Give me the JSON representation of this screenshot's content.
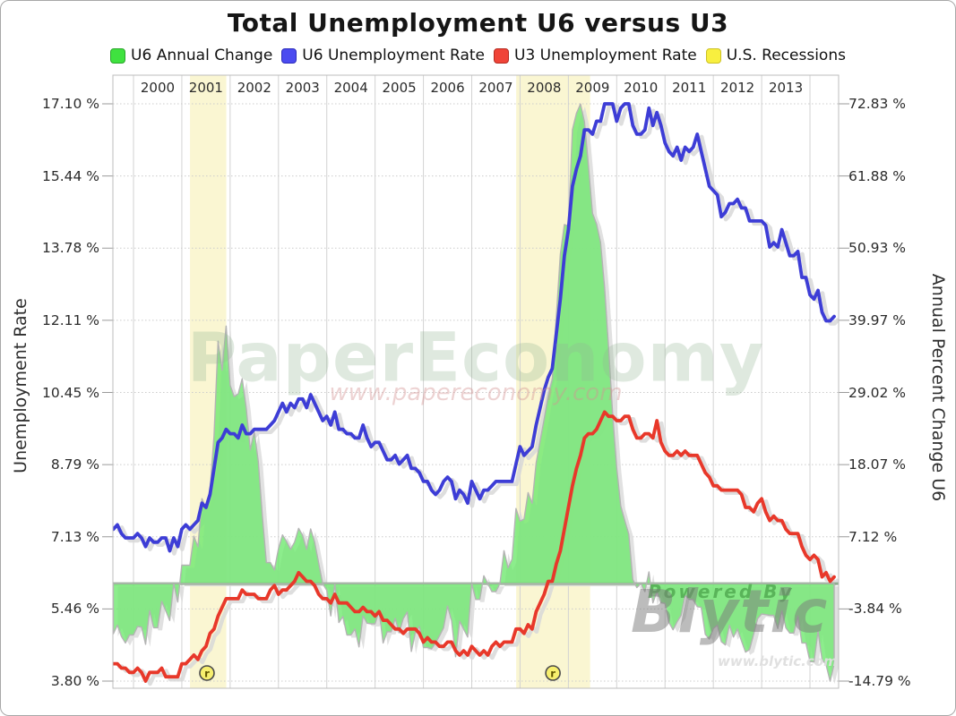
{
  "title": "Total Unemployment U6 versus U3",
  "legend": {
    "items": [
      {
        "label": "U6 Annual Change",
        "color": "#3fe23f",
        "border": "#2aa52a"
      },
      {
        "label": "U6 Unemployment Rate",
        "color": "#4b4bf0",
        "border": "#2d2dbb"
      },
      {
        "label": "U3 Unemployment Rate",
        "color": "#f04438",
        "border": "#b52a20"
      },
      {
        "label": "U.S. Recessions",
        "color": "#f8ef3f",
        "border": "#cbc025"
      }
    ]
  },
  "watermarks": {
    "site_name": "PaperEconomy",
    "site_url": "www.papereconomy.com",
    "powered_by": "Powered By",
    "brand": "Blytic",
    "brand_url": "www.blytic.com"
  },
  "chart_data": {
    "type": "line",
    "title": "Total Unemployment U6 versus U3",
    "x_axis": {
      "unit": "month",
      "start": "1999-08",
      "end": "2014-07",
      "year_labels": [
        "2000",
        "2001",
        "2002",
        "2003",
        "2004",
        "2005",
        "2006",
        "2007",
        "2008",
        "2009",
        "2010",
        "2011",
        "2012",
        "2013"
      ]
    },
    "left_axis": {
      "title": "Unemployment Rate",
      "min": 3.8,
      "max": 17.1,
      "tick_labels": [
        "17.10 %",
        "15.44 %",
        "13.78 %",
        "12.11 %",
        "10.45 %",
        "8.79 %",
        "7.13 %",
        "5.46 %",
        "3.80 %"
      ]
    },
    "right_axis": {
      "title": "Annual Percent Change U6",
      "min": -14.79,
      "max": 72.83,
      "tick_labels": [
        "72.83 %",
        "61.88 %",
        "50.93 %",
        "39.97 %",
        "29.02 %",
        "18.07 %",
        "7.12 %",
        "-3.84 %",
        "-14.79 %"
      ]
    },
    "recessions": [
      {
        "start": 2001.17,
        "end": 2001.92
      },
      {
        "start": 2007.92,
        "end": 2009.45
      }
    ],
    "recession_markers": [
      2001.52,
      2008.68
    ],
    "series": [
      {
        "name": "U6 Annual Change",
        "style": "area",
        "axis": "right",
        "fill": "rgba(108,232,108,0.78)",
        "stroke": "#b3b3b3",
        "values": [
          -7.6,
          -6.3,
          -8.0,
          -9.0,
          -7.8,
          -7.8,
          -6.5,
          -6.6,
          -9.2,
          -4.1,
          -6.7,
          -6.7,
          -2.7,
          -4.1,
          -5.6,
          0.0,
          -2.8,
          2.8,
          2.8,
          2.8,
          7.2,
          5.6,
          12.9,
          11.4,
          14.1,
          22.5,
          36.8,
          32.4,
          39.1,
          30.1,
          28.4,
          28.8,
          31.1,
          26.7,
          20.3,
          23.1,
          18.5,
          10.3,
          3.2,
          3.2,
          2.1,
          5.3,
          7.4,
          6.4,
          5.2,
          6.3,
          8.4,
          7.3,
          5.2,
          8.3,
          6.3,
          3.1,
          0.0,
          -1.0,
          -4.9,
          0.0,
          -5.9,
          -5.0,
          -7.8,
          -7.8,
          -6.9,
          -9.6,
          -4.9,
          -6.0,
          -6.1,
          -6.1,
          -4.1,
          -9.0,
          -7.3,
          -7.3,
          -5.3,
          -7.4,
          -5.3,
          -4.3,
          -10.3,
          -7.4,
          -6.5,
          -9.7,
          -9.7,
          -9.9,
          -9.0,
          -7.9,
          -6.7,
          -3.4,
          -5.6,
          -11.1,
          -5.7,
          -6.9,
          -8.1,
          0.0,
          -2.4,
          -2.4,
          1.2,
          0.0,
          -1.2,
          -1.2,
          0.0,
          5.0,
          2.4,
          3.7,
          11.4,
          9.5,
          9.8,
          13.8,
          12.2,
          18.3,
          21.7,
          25.0,
          28.6,
          31.0,
          40.5,
          50.0,
          54.5,
          54.3,
          68.9,
          71.4,
          72.8,
          70.1,
          63.4,
          56.2,
          54.6,
          51.8,
          44.9,
          35.7,
          25.7,
          17.6,
          11.8,
          9.6,
          7.5,
          0.6,
          -0.6,
          0.0,
          -1.2,
          1.8,
          -2.9,
          -1.2,
          -2.9,
          -3.0,
          -5.9,
          -7.0,
          -5.8,
          -4.8,
          -1.8,
          -2.4,
          -2.4,
          -3.5,
          -3.6,
          -7.7,
          -8.4,
          -6.8,
          -6.3,
          -8.8,
          -9.3,
          -6.3,
          -8.1,
          -6.9,
          -8.7,
          -10.4,
          -10.0,
          -7.7,
          -5.3,
          -4.6,
          -4.7,
          -4.8,
          -4.8,
          -6.8,
          -4.1,
          -6.7,
          -7.5,
          -7.5,
          -4.9,
          -9.0,
          -9.0,
          -11.8,
          -11.9,
          -7.2,
          -11.5,
          -12.3,
          -14.8,
          -12.2
        ]
      },
      {
        "name": "U3 Unemployment Rate",
        "style": "line",
        "axis": "left",
        "stroke": "#e8382a",
        "values": [
          4.2,
          4.2,
          4.1,
          4.1,
          4.0,
          4.0,
          4.1,
          4.0,
          3.8,
          4.0,
          4.0,
          4.0,
          4.1,
          3.9,
          3.9,
          3.9,
          3.9,
          4.2,
          4.2,
          4.3,
          4.4,
          4.3,
          4.5,
          4.6,
          4.9,
          5.0,
          5.3,
          5.5,
          5.7,
          5.7,
          5.7,
          5.7,
          5.9,
          5.8,
          5.8,
          5.8,
          5.7,
          5.7,
          5.7,
          5.9,
          6.0,
          5.8,
          5.9,
          5.9,
          6.0,
          6.1,
          6.3,
          6.2,
          6.1,
          6.1,
          6.0,
          5.8,
          5.7,
          5.7,
          5.6,
          5.8,
          5.6,
          5.6,
          5.6,
          5.5,
          5.4,
          5.4,
          5.5,
          5.4,
          5.4,
          5.3,
          5.4,
          5.2,
          5.2,
          5.1,
          5.0,
          5.0,
          4.9,
          5.0,
          5.0,
          5.0,
          4.9,
          4.7,
          4.8,
          4.7,
          4.7,
          4.6,
          4.6,
          4.7,
          4.7,
          4.5,
          4.4,
          4.5,
          4.4,
          4.6,
          4.5,
          4.4,
          4.5,
          4.4,
          4.6,
          4.7,
          4.6,
          4.7,
          4.7,
          4.7,
          5.0,
          5.0,
          4.9,
          5.1,
          5.0,
          5.4,
          5.6,
          5.8,
          6.1,
          6.1,
          6.5,
          6.8,
          7.3,
          7.8,
          8.3,
          8.7,
          9.0,
          9.4,
          9.5,
          9.5,
          9.6,
          9.8,
          10.0,
          9.9,
          9.9,
          9.8,
          9.8,
          9.9,
          9.9,
          9.6,
          9.4,
          9.4,
          9.5,
          9.5,
          9.4,
          9.8,
          9.3,
          9.1,
          9.0,
          9.0,
          9.1,
          9.0,
          9.1,
          9.0,
          9.0,
          9.0,
          8.8,
          8.6,
          8.5,
          8.3,
          8.3,
          8.2,
          8.2,
          8.2,
          8.2,
          8.2,
          8.1,
          7.8,
          7.8,
          7.7,
          7.9,
          8.0,
          7.7,
          7.5,
          7.6,
          7.5,
          7.5,
          7.3,
          7.2,
          7.2,
          7.2,
          6.9,
          6.7,
          6.6,
          6.7,
          6.6,
          6.2,
          6.3,
          6.1,
          6.2
        ]
      },
      {
        "name": "U6 Unemployment Rate",
        "style": "line",
        "axis": "left",
        "stroke": "#3d3dd6",
        "values": [
          7.3,
          7.4,
          7.2,
          7.1,
          7.1,
          7.1,
          7.2,
          7.1,
          6.9,
          7.1,
          7.0,
          7.0,
          7.1,
          7.1,
          6.8,
          7.1,
          6.9,
          7.3,
          7.4,
          7.3,
          7.4,
          7.5,
          7.9,
          7.8,
          8.1,
          8.7,
          9.3,
          9.4,
          9.6,
          9.5,
          9.5,
          9.4,
          9.7,
          9.5,
          9.5,
          9.6,
          9.6,
          9.6,
          9.6,
          9.7,
          9.8,
          10.0,
          10.2,
          10.0,
          10.2,
          10.1,
          10.3,
          10.3,
          10.1,
          10.4,
          10.2,
          10.0,
          9.8,
          9.9,
          9.7,
          10.0,
          9.6,
          9.6,
          9.5,
          9.5,
          9.4,
          9.4,
          9.7,
          9.4,
          9.2,
          9.3,
          9.3,
          9.1,
          8.9,
          8.9,
          9.0,
          8.8,
          8.9,
          9.0,
          8.7,
          8.7,
          8.6,
          8.4,
          8.4,
          8.2,
          8.1,
          8.2,
          8.4,
          8.5,
          8.4,
          8.0,
          8.2,
          8.1,
          7.9,
          8.4,
          8.2,
          8.0,
          8.2,
          8.2,
          8.3,
          8.4,
          8.4,
          8.4,
          8.4,
          8.4,
          8.8,
          9.2,
          9.0,
          9.1,
          9.2,
          9.7,
          10.1,
          10.5,
          10.8,
          11.0,
          11.8,
          12.6,
          13.6,
          14.2,
          15.2,
          15.6,
          15.9,
          16.5,
          16.5,
          16.4,
          16.7,
          16.7,
          17.1,
          17.1,
          17.1,
          16.7,
          17.0,
          17.1,
          17.1,
          16.6,
          16.4,
          16.4,
          16.5,
          17.0,
          16.6,
          16.9,
          16.6,
          16.2,
          16.0,
          15.9,
          16.1,
          15.8,
          16.1,
          16.0,
          16.1,
          16.4,
          16.0,
          15.6,
          15.2,
          15.1,
          15.0,
          14.5,
          14.6,
          14.8,
          14.8,
          14.9,
          14.7,
          14.7,
          14.4,
          14.4,
          14.4,
          14.4,
          14.3,
          13.8,
          13.9,
          13.8,
          14.2,
          13.9,
          13.6,
          13.6,
          13.7,
          13.1,
          13.1,
          12.7,
          12.6,
          12.8,
          12.3,
          12.1,
          12.1,
          12.2
        ]
      }
    ]
  }
}
